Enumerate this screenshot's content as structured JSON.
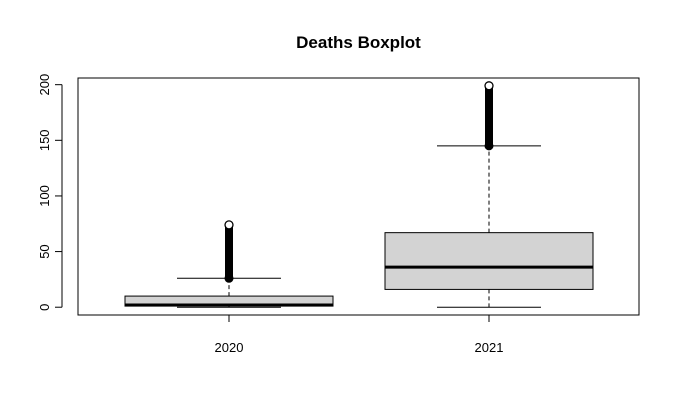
{
  "chart_data": {
    "type": "boxplot",
    "title": "Deaths Boxplot",
    "xlabel": "",
    "ylabel": "",
    "ylim": [
      -7,
      206
    ],
    "yticks": [
      0,
      50,
      100,
      150,
      200
    ],
    "categories": [
      "2020",
      "2021"
    ],
    "boxes": [
      {
        "category": "2020",
        "min": 0,
        "q1": 1,
        "median": 2,
        "q3": 10,
        "whisker_high": 26,
        "outliers_from": 26,
        "outliers_to": 74
      },
      {
        "category": "2021",
        "min": 0,
        "q1": 16,
        "median": 36,
        "q3": 67,
        "whisker_high": 145,
        "outliers_from": 145,
        "outliers_to": 199
      }
    ],
    "box_fill": "#d3d3d3",
    "grid": false
  }
}
